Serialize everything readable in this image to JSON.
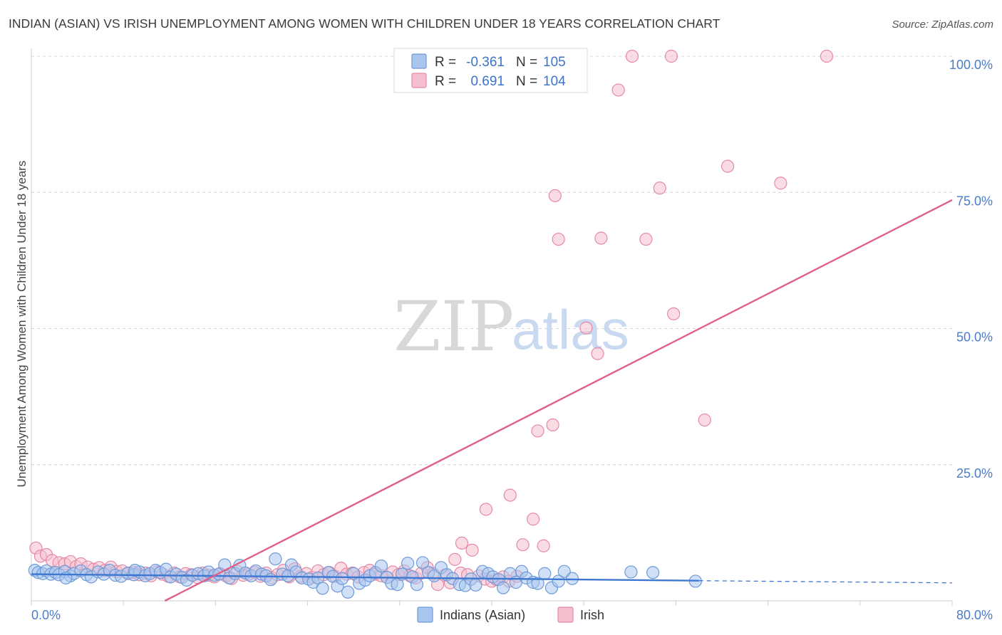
{
  "title": "INDIAN (ASIAN) VS IRISH UNEMPLOYMENT AMONG WOMEN WITH CHILDREN UNDER 18 YEARS CORRELATION CHART",
  "source": "Source: ZipAtlas.com",
  "watermark": {
    "zip": "ZIP",
    "atlas": "atlas"
  },
  "legend": {
    "r_label": "R =",
    "n_label": "N =",
    "entries": [
      {
        "r": "-0.361",
        "n": "105",
        "fill": "#a9c6ee",
        "stroke": "#6f9ad8"
      },
      {
        "r": "0.691",
        "n": "104",
        "fill": "#f6bfd0",
        "stroke": "#e58aa6"
      }
    ]
  },
  "chart_data": {
    "type": "scatter",
    "title": "INDIAN (ASIAN) VS IRISH UNEMPLOYMENT AMONG WOMEN WITH CHILDREN UNDER 18 YEARS CORRELATION CHART",
    "xlabel": "",
    "ylabel": "Unemployment Among Women with Children Under 18 years",
    "xlim": [
      0,
      80
    ],
    "ylim": [
      0,
      100
    ],
    "x_tick_labels": [
      "0.0%",
      "80.0%"
    ],
    "y_ticks": [
      25,
      50,
      75,
      100
    ],
    "y_tick_labels": [
      "25.0%",
      "50.0%",
      "75.0%",
      "100.0%"
    ],
    "grid": "horizontal dashed",
    "legend_position": "top-center",
    "series": [
      {
        "name": "Indians (Asian)",
        "color": "#a9c6ee",
        "stroke": "#6f9ad8",
        "line_color": "#3f78d0",
        "trend": {
          "x0": 0,
          "y0": 4.9,
          "x1": 58,
          "y1": 3.7,
          "dashed_to_x": 80,
          "dashed_to_y": 3.3
        },
        "points": [
          [
            0.3,
            5.6
          ],
          [
            0.6,
            5.2
          ],
          [
            1.0,
            5.0
          ],
          [
            1.3,
            5.5
          ],
          [
            1.7,
            4.9
          ],
          [
            2.1,
            5.2
          ],
          [
            2.4,
            4.8
          ],
          [
            2.9,
            5.4
          ],
          [
            3.4,
            4.6
          ],
          [
            3.7,
            5.0
          ],
          [
            4.3,
            5.5
          ],
          [
            4.8,
            4.8
          ],
          [
            5.2,
            4.4
          ],
          [
            5.8,
            5.3
          ],
          [
            6.3,
            4.9
          ],
          [
            6.8,
            5.6
          ],
          [
            7.3,
            4.7
          ],
          [
            7.8,
            4.5
          ],
          [
            8.4,
            5.1
          ],
          [
            8.9,
            4.8
          ],
          [
            9.4,
            5.3
          ],
          [
            9.9,
            4.6
          ],
          [
            10.3,
            5.0
          ],
          [
            10.8,
            5.6
          ],
          [
            11.2,
            5.2
          ],
          [
            11.7,
            5.8
          ],
          [
            12.1,
            4.4
          ],
          [
            12.6,
            4.9
          ],
          [
            13.1,
            4.3
          ],
          [
            13.5,
            3.8
          ],
          [
            14.0,
            4.7
          ],
          [
            14.5,
            5.0
          ],
          [
            15.0,
            4.6
          ],
          [
            15.4,
            5.3
          ],
          [
            15.9,
            4.7
          ],
          [
            16.3,
            4.9
          ],
          [
            16.8,
            6.6
          ],
          [
            17.2,
            4.2
          ],
          [
            17.7,
            5.0
          ],
          [
            18.1,
            6.5
          ],
          [
            18.6,
            5.1
          ],
          [
            19.1,
            4.6
          ],
          [
            19.5,
            5.5
          ],
          [
            20.0,
            4.9
          ],
          [
            20.4,
            4.6
          ],
          [
            20.8,
            3.9
          ],
          [
            21.2,
            7.7
          ],
          [
            21.8,
            4.9
          ],
          [
            22.3,
            4.6
          ],
          [
            22.6,
            6.6
          ],
          [
            23.0,
            5.3
          ],
          [
            23.5,
            4.2
          ],
          [
            24.1,
            4.0
          ],
          [
            24.5,
            3.4
          ],
          [
            24.9,
            4.2
          ],
          [
            25.3,
            2.3
          ],
          [
            25.8,
            5.2
          ],
          [
            26.2,
            4.5
          ],
          [
            26.6,
            2.7
          ],
          [
            27.0,
            4.1
          ],
          [
            27.5,
            1.6
          ],
          [
            28.0,
            5.0
          ],
          [
            28.5,
            3.2
          ],
          [
            29.0,
            3.8
          ],
          [
            29.4,
            4.6
          ],
          [
            29.9,
            5.2
          ],
          [
            30.4,
            6.4
          ],
          [
            30.9,
            4.3
          ],
          [
            31.3,
            3.2
          ],
          [
            31.8,
            3.0
          ],
          [
            32.2,
            4.9
          ],
          [
            32.7,
            6.9
          ],
          [
            33.1,
            4.4
          ],
          [
            33.5,
            3.0
          ],
          [
            34.0,
            7.0
          ],
          [
            34.5,
            5.2
          ],
          [
            35.0,
            4.6
          ],
          [
            35.6,
            6.1
          ],
          [
            36.1,
            4.8
          ],
          [
            36.6,
            4.1
          ],
          [
            37.2,
            3.0
          ],
          [
            37.7,
            2.8
          ],
          [
            38.2,
            4.0
          ],
          [
            38.6,
            2.9
          ],
          [
            39.2,
            5.4
          ],
          [
            39.7,
            5.0
          ],
          [
            40.1,
            4.4
          ],
          [
            40.6,
            3.9
          ],
          [
            41.0,
            2.4
          ],
          [
            41.6,
            5.0
          ],
          [
            42.1,
            3.4
          ],
          [
            42.6,
            5.4
          ],
          [
            43.0,
            4.2
          ],
          [
            43.6,
            3.4
          ],
          [
            44.0,
            3.2
          ],
          [
            44.6,
            5.0
          ],
          [
            45.2,
            2.4
          ],
          [
            45.8,
            3.6
          ],
          [
            46.3,
            5.4
          ],
          [
            47.0,
            4.1
          ],
          [
            52.1,
            5.3
          ],
          [
            54.0,
            5.2
          ],
          [
            57.7,
            3.6
          ],
          [
            3.0,
            4.2
          ],
          [
            9.0,
            5.6
          ]
        ]
      },
      {
        "name": "Irish",
        "color": "#f6bfd0",
        "stroke": "#e58aa6",
        "line_color": "#e0608a",
        "trend": {
          "x0": 11.6,
          "y0": 0,
          "x1": 80,
          "y1": 73.6
        },
        "points": [
          [
            0.4,
            9.7
          ],
          [
            0.8,
            8.2
          ],
          [
            1.3,
            8.5
          ],
          [
            1.8,
            7.4
          ],
          [
            2.4,
            7.0
          ],
          [
            2.9,
            6.8
          ],
          [
            3.4,
            7.2
          ],
          [
            3.9,
            6.3
          ],
          [
            4.3,
            6.8
          ],
          [
            4.9,
            6.2
          ],
          [
            5.4,
            5.8
          ],
          [
            5.9,
            6.1
          ],
          [
            6.4,
            5.6
          ],
          [
            6.9,
            6.2
          ],
          [
            7.4,
            5.4
          ],
          [
            7.9,
            5.5
          ],
          [
            8.4,
            5.0
          ],
          [
            8.9,
            5.2
          ],
          [
            9.4,
            4.8
          ],
          [
            9.9,
            5.1
          ],
          [
            10.4,
            4.6
          ],
          [
            10.9,
            5.3
          ],
          [
            11.4,
            4.9
          ],
          [
            11.9,
            4.5
          ],
          [
            12.4,
            5.1
          ],
          [
            12.9,
            4.4
          ],
          [
            13.4,
            5.0
          ],
          [
            13.9,
            4.8
          ],
          [
            14.4,
            4.3
          ],
          [
            14.9,
            5.1
          ],
          [
            15.4,
            4.7
          ],
          [
            15.9,
            4.4
          ],
          [
            16.4,
            5.0
          ],
          [
            16.9,
            4.6
          ],
          [
            17.4,
            4.1
          ],
          [
            17.9,
            5.4
          ],
          [
            18.4,
            4.7
          ],
          [
            18.9,
            4.9
          ],
          [
            19.4,
            5.2
          ],
          [
            19.9,
            4.5
          ],
          [
            20.4,
            5.1
          ],
          [
            20.9,
            4.2
          ],
          [
            21.4,
            4.8
          ],
          [
            21.9,
            5.6
          ],
          [
            22.4,
            4.4
          ],
          [
            22.9,
            5.9
          ],
          [
            23.4,
            4.5
          ],
          [
            23.9,
            5.0
          ],
          [
            24.4,
            4.3
          ],
          [
            24.9,
            5.5
          ],
          [
            25.4,
            4.8
          ],
          [
            25.9,
            5.2
          ],
          [
            26.4,
            4.5
          ],
          [
            26.9,
            6.0
          ],
          [
            27.4,
            4.9
          ],
          [
            27.9,
            5.1
          ],
          [
            28.4,
            4.4
          ],
          [
            28.9,
            5.2
          ],
          [
            29.4,
            5.6
          ],
          [
            29.9,
            4.9
          ],
          [
            30.4,
            4.6
          ],
          [
            30.9,
            4.3
          ],
          [
            31.4,
            5.3
          ],
          [
            31.9,
            4.8
          ],
          [
            32.4,
            5.5
          ],
          [
            32.9,
            4.6
          ],
          [
            33.4,
            4.2
          ],
          [
            33.9,
            5.1
          ],
          [
            34.4,
            6.1
          ],
          [
            34.9,
            5.0
          ],
          [
            35.3,
            3.0
          ],
          [
            35.9,
            4.7
          ],
          [
            36.4,
            3.3
          ],
          [
            36.8,
            7.6
          ],
          [
            37.3,
            5.1
          ],
          [
            37.9,
            4.8
          ],
          [
            38.3,
            9.3
          ],
          [
            38.9,
            4.6
          ],
          [
            39.4,
            4.0
          ],
          [
            40.0,
            3.6
          ],
          [
            40.4,
            3.9
          ],
          [
            41.0,
            4.4
          ],
          [
            41.5,
            3.6
          ],
          [
            42.2,
            4.5
          ],
          [
            37.4,
            10.6
          ],
          [
            39.5,
            16.8
          ],
          [
            41.6,
            19.4
          ],
          [
            42.7,
            10.3
          ],
          [
            43.6,
            15.0
          ],
          [
            44.5,
            10.1
          ],
          [
            44.0,
            31.2
          ],
          [
            45.3,
            32.3
          ],
          [
            45.5,
            74.4
          ],
          [
            45.3,
            100.0
          ],
          [
            45.8,
            66.4
          ],
          [
            48.2,
            50.1
          ],
          [
            49.2,
            45.4
          ],
          [
            49.5,
            66.6
          ],
          [
            51.0,
            93.8
          ],
          [
            52.2,
            100.0
          ],
          [
            53.4,
            66.4
          ],
          [
            54.6,
            75.8
          ],
          [
            55.6,
            100.0
          ],
          [
            55.8,
            52.7
          ],
          [
            58.5,
            33.2
          ],
          [
            60.5,
            79.8
          ],
          [
            65.1,
            76.7
          ],
          [
            69.1,
            100.0
          ]
        ]
      }
    ]
  },
  "bottom_legend": [
    {
      "label": "Indians (Asian)",
      "fill": "#a9c6ee",
      "stroke": "#6f9ad8"
    },
    {
      "label": "Irish",
      "fill": "#f6bfd0",
      "stroke": "#e58aa6"
    }
  ]
}
